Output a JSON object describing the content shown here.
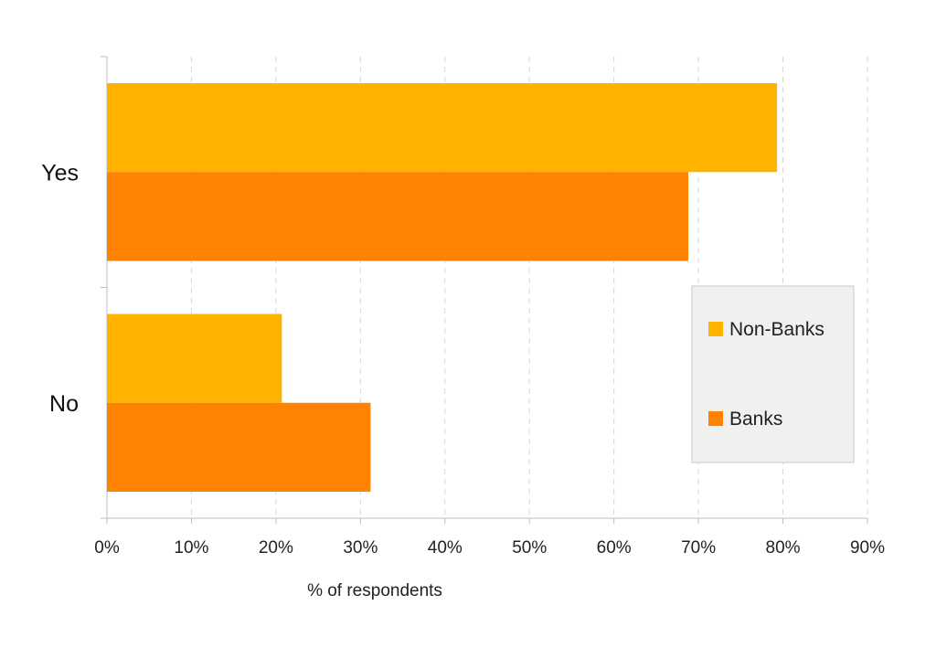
{
  "chart_data": {
    "type": "bar",
    "orientation": "horizontal",
    "categories": [
      "Yes",
      "No"
    ],
    "series": [
      {
        "name": "Non-Banks",
        "values": [
          79.3,
          20.7
        ],
        "color": "#FFB300"
      },
      {
        "name": "Banks",
        "values": [
          68.8,
          31.2
        ],
        "color": "#FF8300"
      }
    ],
    "xlabel": "% of respondents",
    "ylabel": "",
    "xlim": [
      0,
      90
    ],
    "xticks": [
      "0%",
      "10%",
      "20%",
      "30%",
      "40%",
      "50%",
      "60%",
      "70%",
      "80%",
      "90%"
    ],
    "grid": "vertical dashed",
    "legend": {
      "position": "right",
      "background": "#F0F0F0",
      "entries": [
        "Non-Banks",
        "Banks"
      ]
    }
  }
}
